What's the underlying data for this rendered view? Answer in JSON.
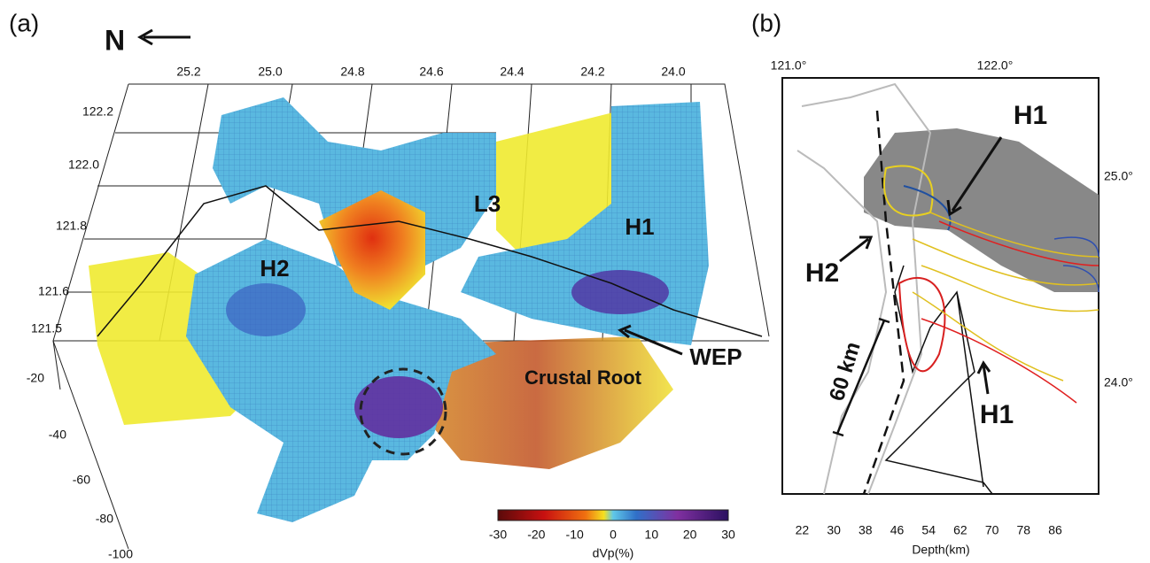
{
  "panel_a": {
    "label": "(a)",
    "north": "N",
    "lat_ticks": [
      "25.2",
      "25.0",
      "24.8",
      "24.6",
      "24.4",
      "24.2",
      "24.0"
    ],
    "lon_ticks": [
      "122.2",
      "122.0",
      "121.8",
      "121.6",
      "121.5"
    ],
    "depth_ticks": [
      "-20",
      "-40",
      "-60",
      "-80",
      "-100"
    ],
    "annotations": [
      "L3",
      "H1",
      "H2",
      "WEP",
      "Crustal Root"
    ],
    "colorbar": {
      "ticks": [
        "-30",
        "-20",
        "-10",
        "0",
        "10",
        "20",
        "30"
      ],
      "label": "dVp(%)"
    }
  },
  "panel_b": {
    "label": "(b)",
    "lon_ticks": [
      "121.0°",
      "122.0°"
    ],
    "lat_ticks": [
      "25.0°",
      "24.0°"
    ],
    "annotations": [
      "H1",
      "H2",
      "H1",
      "60 km"
    ],
    "colorbar": {
      "ticks": [
        "22",
        "30",
        "38",
        "46",
        "54",
        "62",
        "70",
        "78",
        "86"
      ],
      "label": "Depth(km)"
    }
  }
}
